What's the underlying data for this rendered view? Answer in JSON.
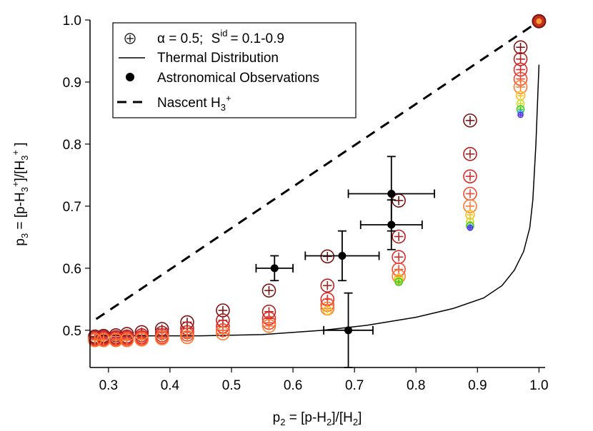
{
  "chart_data": {
    "type": "scatter",
    "xlabel": "p2 = [p-H2]/[H2]",
    "ylabel": "p3 = [p-H3+]/[H3+]",
    "xlim": [
      0.27,
      1.01
    ],
    "ylim": [
      0.44,
      1.0
    ],
    "xticks": [
      "0.3",
      "0.4",
      "0.5",
      "0.6",
      "0.7",
      "0.8",
      "0.9",
      "1.0"
    ],
    "yticks": [
      "0.5",
      "0.6",
      "0.7",
      "0.8",
      "0.9",
      "1.0"
    ],
    "legend": {
      "placement": "top-left",
      "entries": {
        "model": {
          "alpha": "α = 0.5;",
          "s": "S",
          "s_sup": "id",
          "s_rest": "= 0.1-0.9"
        },
        "thermal": "Thermal Distribution",
        "observations": "Astronomical Observations",
        "nascent": "Nascent H",
        "nascent_sub": "3",
        "nascent_sup": "+"
      }
    },
    "thermal_distribution": {
      "x": [
        0.28,
        0.35,
        0.45,
        0.55,
        0.65,
        0.72,
        0.8,
        0.86,
        0.91,
        0.94,
        0.96,
        0.975,
        0.985,
        0.99,
        0.995,
        1.0
      ],
      "y": [
        0.492,
        0.491,
        0.491,
        0.493,
        0.5,
        0.508,
        0.521,
        0.535,
        0.552,
        0.572,
        0.597,
        0.627,
        0.665,
        0.71,
        0.8,
        0.928
      ]
    },
    "nascent_h3": {
      "x": [
        0.28,
        1.0
      ],
      "y": [
        0.518,
        0.998
      ]
    },
    "observations": [
      {
        "x": 0.57,
        "y": 0.6,
        "xerr": 0.03,
        "yerr": 0.02
      },
      {
        "x": 0.68,
        "y": 0.62,
        "xerr": 0.06,
        "yerr": 0.04
      },
      {
        "x": 0.69,
        "y": 0.5,
        "xerr": 0.04,
        "yerr": 0.06
      },
      {
        "x": 0.76,
        "y": 0.67,
        "xerr": 0.05,
        "yerr": 0.04
      },
      {
        "x": 0.76,
        "y": 0.72,
        "xerr": 0.07,
        "yerr": 0.06
      }
    ],
    "model_series": [
      {
        "s_id": 0.1,
        "color": "#7b1515",
        "x": [
          0.278,
          0.292,
          0.312,
          0.33,
          0.354,
          0.387,
          0.428,
          0.486,
          0.561,
          0.656,
          0.772,
          0.888,
          0.97
        ],
        "y": [
          0.49,
          0.491,
          0.492,
          0.494,
          0.497,
          0.502,
          0.513,
          0.532,
          0.564,
          0.619,
          0.709,
          0.838,
          0.956
        ]
      },
      {
        "s_id": 0.3,
        "color": "#b52020",
        "x": [
          0.278,
          0.292,
          0.312,
          0.33,
          0.354,
          0.387,
          0.428,
          0.486,
          0.561,
          0.656,
          0.772,
          0.888,
          0.97
        ],
        "y": [
          0.488,
          0.489,
          0.489,
          0.49,
          0.492,
          0.496,
          0.503,
          0.516,
          0.53,
          0.572,
          0.651,
          0.784,
          0.937
        ]
      },
      {
        "s_id": 0.5,
        "color": "#e02a2a",
        "x": [
          0.278,
          0.292,
          0.312,
          0.33,
          0.354,
          0.387,
          0.428,
          0.486,
          0.561,
          0.656,
          0.772,
          0.888,
          0.97
        ],
        "y": [
          0.486,
          0.487,
          0.487,
          0.488,
          0.489,
          0.492,
          0.497,
          0.506,
          0.519,
          0.55,
          0.618,
          0.748,
          0.92
        ]
      },
      {
        "s_id": 0.6,
        "color": "#f24a30",
        "x": [
          0.278,
          0.292,
          0.312,
          0.33,
          0.354,
          0.387,
          0.428,
          0.486,
          0.561,
          0.656,
          0.772,
          0.888,
          0.97
        ],
        "y": [
          0.485,
          0.485,
          0.485,
          0.486,
          0.487,
          0.489,
          0.493,
          0.5,
          0.512,
          0.541,
          0.598,
          0.72,
          0.905
        ]
      },
      {
        "s_id": 0.7,
        "color": "#ff7a30",
        "x": [
          0.278,
          0.292,
          0.312,
          0.33,
          0.354,
          0.387,
          0.428,
          0.486,
          0.561,
          0.656,
          0.772,
          0.888,
          0.97
        ],
        "y": [
          0.484,
          0.484,
          0.484,
          0.484,
          0.485,
          0.487,
          0.489,
          0.495,
          0.507,
          0.535,
          0.587,
          0.7,
          0.892
        ]
      },
      {
        "s_id": 0.75,
        "color": "#ffc020",
        "x": [
          0.656,
          0.772,
          0.888,
          0.97
        ],
        "y": [
          0.532,
          0.583,
          0.686,
          0.878
        ]
      },
      {
        "s_id": 0.8,
        "color": "#c8dc28",
        "x": [
          0.772,
          0.888,
          0.97
        ],
        "y": [
          0.58,
          0.675,
          0.865
        ]
      },
      {
        "s_id": 0.85,
        "color": "#3cc828",
        "x": [
          0.772,
          0.888,
          0.97
        ],
        "y": [
          0.578,
          0.668,
          0.856
        ]
      },
      {
        "s_id": 0.9,
        "color": "#28a0ff",
        "x": [
          0.888,
          0.97
        ],
        "y": [
          0.666,
          0.85
        ]
      },
      {
        "s_id": 0.95,
        "color": "#6030e0",
        "x": [
          0.888,
          0.97
        ],
        "y": [
          0.665,
          0.847
        ]
      }
    ],
    "endpoint": {
      "x": 1.0,
      "y": 0.998
    }
  }
}
